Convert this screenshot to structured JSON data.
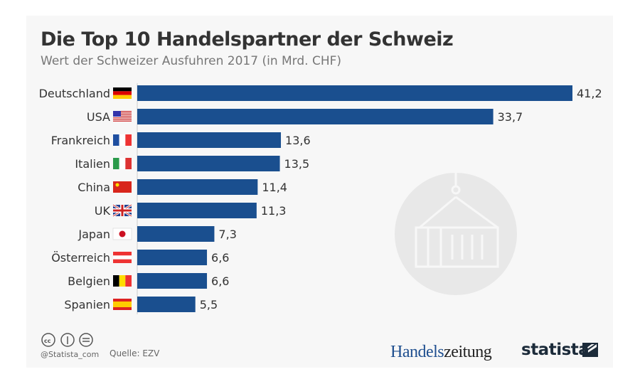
{
  "chart_data": {
    "type": "bar",
    "orientation": "horizontal",
    "title": "Die Top 10 Handelspartner der Schweiz",
    "subtitle": "Wert der Schweizer Ausfuhren 2017 (in Mrd. CHF)",
    "categories": [
      "Deutschland",
      "USA",
      "Frankreich",
      "Italien",
      "China",
      "UK",
      "Japan",
      "Österreich",
      "Belgien",
      "Spanien"
    ],
    "values": [
      41.2,
      33.7,
      13.6,
      13.5,
      11.4,
      11.3,
      7.3,
      6.6,
      6.6,
      5.5
    ],
    "labels": [
      "41,2",
      "33,7",
      "13,6",
      "13,5",
      "11,4",
      "11,3",
      "7,3",
      "6,6",
      "6,6",
      "5,5"
    ],
    "flags": [
      "de",
      "us",
      "fr",
      "it",
      "cn",
      "uk",
      "jp",
      "at",
      "be",
      "es"
    ],
    "xlim": [
      0,
      41.2
    ],
    "grid": false,
    "bar_color": "#1a4f8f"
  },
  "footer": {
    "handle": "@Statista_com",
    "source": "Quelle: EZV",
    "brand1a": "Handels",
    "brand1b": "zeitung",
    "brand2": "statista",
    "license_icons": [
      "cc-icon",
      "by-icon",
      "nd-icon"
    ]
  }
}
